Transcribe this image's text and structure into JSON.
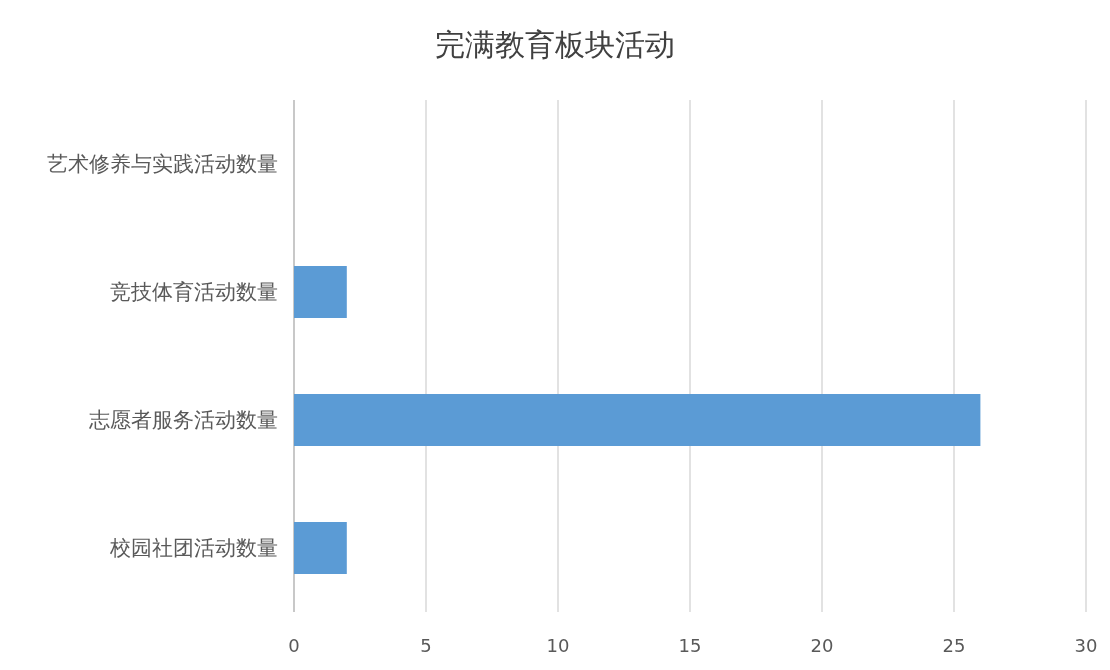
{
  "chart_data": {
    "type": "bar",
    "orientation": "horizontal",
    "title": "完满教育板块活动",
    "categories": [
      "艺术修养与实践活动数量",
      "竞技体育活动数量",
      "志愿者服务活动数量",
      "校园社团活动数量"
    ],
    "values": [
      0,
      2,
      26,
      2
    ],
    "color": "#5b9bd5",
    "xlim": [
      0,
      30
    ],
    "xticks": [
      0,
      5,
      10,
      15,
      20,
      25,
      30
    ],
    "grid": "x"
  }
}
